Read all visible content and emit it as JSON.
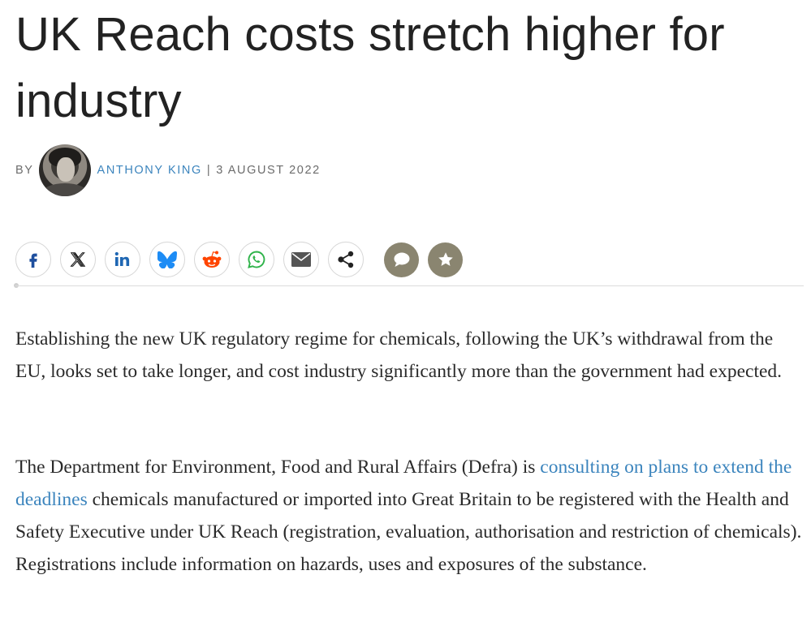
{
  "article": {
    "title": "UK Reach costs stretch higher for industry",
    "byline": {
      "by_label": "BY",
      "author": "ANTHONY KING",
      "separator": "|",
      "date": "3 AUGUST 2022"
    }
  },
  "share": {
    "buttons": [
      {
        "name": "facebook",
        "icon": "facebook-icon",
        "color": "#1f4f9e"
      },
      {
        "name": "x",
        "icon": "x-icon",
        "color": "#111111"
      },
      {
        "name": "linkedin",
        "icon": "linkedin-icon",
        "color": "#1f67b3"
      },
      {
        "name": "bluesky",
        "icon": "bluesky-icon",
        "color": "#1d8cf5"
      },
      {
        "name": "reddit",
        "icon": "reddit-icon",
        "color": "#ff4500"
      },
      {
        "name": "whatsapp",
        "icon": "whatsapp-icon",
        "color": "#2fb34a"
      },
      {
        "name": "email",
        "icon": "mail-icon",
        "color": "#555555"
      },
      {
        "name": "more",
        "icon": "share-icon",
        "color": "#222222"
      }
    ],
    "comment_icon": "comment-icon",
    "bookmark_icon": "star-icon",
    "action_color": "#8a8570"
  },
  "body": {
    "p1": "Establishing the new UK regulatory regime for chemicals, following the UK’s withdrawal from the EU, looks set to take longer, and cost industry significantly more than the government had expected.",
    "p2_before": "The Department for Environment, Food and Rural Affairs (Defra) is ",
    "p2_link": "consulting on plans to extend the deadlines",
    "p2_after": " chemicals manufactured or imported into Great Britain to be registered with the Health and Safety Executive under UK Reach (registration, evaluation, authorisation and restriction of chemicals). Registrations include information on hazards, uses and exposures of the substance."
  },
  "colors": {
    "link": "#3b84bd",
    "text": "#222222"
  }
}
